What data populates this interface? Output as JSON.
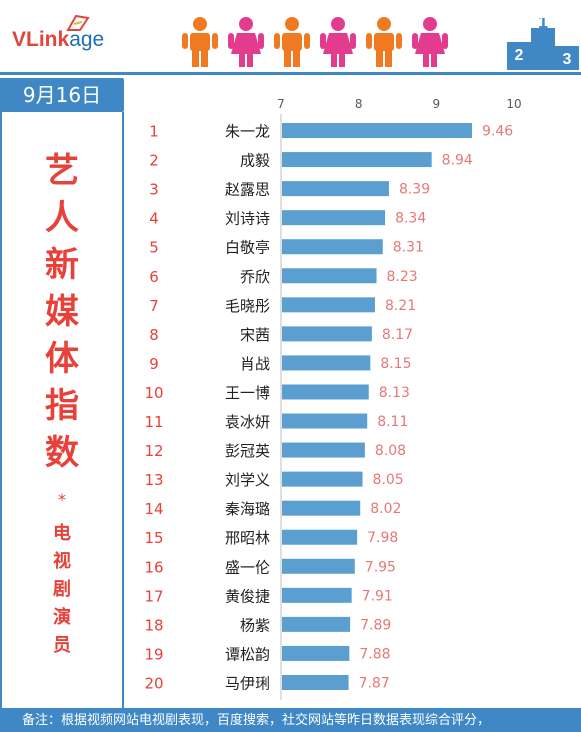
{
  "brand": {
    "part1": "VLink",
    "part2": "age"
  },
  "date": "9月16日",
  "side_title": [
    "艺",
    "人",
    "新",
    "媒",
    "体",
    "指",
    "数"
  ],
  "side_star": "*",
  "side_subtitle": [
    "电",
    "视",
    "剧",
    "演",
    "员"
  ],
  "footer_note": "备注：根据视频网站电视剧表现，百度搜索，社交网站等昨日数据表现综合评分，",
  "colors": {
    "accent": "#3f88c5",
    "bar": "#5a9fd0",
    "value": "#e87878",
    "rank": "#e8413a",
    "title": "#e8413a"
  },
  "chart_data": {
    "type": "bar",
    "orientation": "horizontal",
    "xlim": [
      7,
      10
    ],
    "xticks": [
      7,
      8,
      9,
      10
    ],
    "categories": [
      "朱一龙",
      "成毅",
      "赵露思",
      "刘诗诗",
      "白敬亭",
      "乔欣",
      "毛晓彤",
      "宋茜",
      "肖战",
      "王一博",
      "袁冰妍",
      "彭冠英",
      "刘学义",
      "秦海璐",
      "邢昭林",
      "盛一伦",
      "黄俊捷",
      "杨紫",
      "谭松韵",
      "马伊琍"
    ],
    "ranks": [
      "1",
      "2",
      "3",
      "4",
      "5",
      "6",
      "7",
      "8",
      "9",
      "10",
      "11",
      "12",
      "13",
      "14",
      "15",
      "16",
      "17",
      "18",
      "19",
      "20"
    ],
    "values": [
      9.46,
      8.94,
      8.39,
      8.34,
      8.31,
      8.23,
      8.21,
      8.17,
      8.15,
      8.13,
      8.11,
      8.08,
      8.05,
      8.02,
      7.98,
      7.95,
      7.91,
      7.89,
      7.88,
      7.87
    ],
    "value_labels": [
      "9.46",
      "8.94",
      "8.39",
      "8.34",
      "8.31",
      "8.23",
      "8.21",
      "8.17",
      "8.15",
      "8.13",
      "8.11",
      "8.08",
      "8.05",
      "8.02",
      "7.98",
      "7.95",
      "7.91",
      "7.89",
      "7.88",
      "7.87"
    ]
  }
}
